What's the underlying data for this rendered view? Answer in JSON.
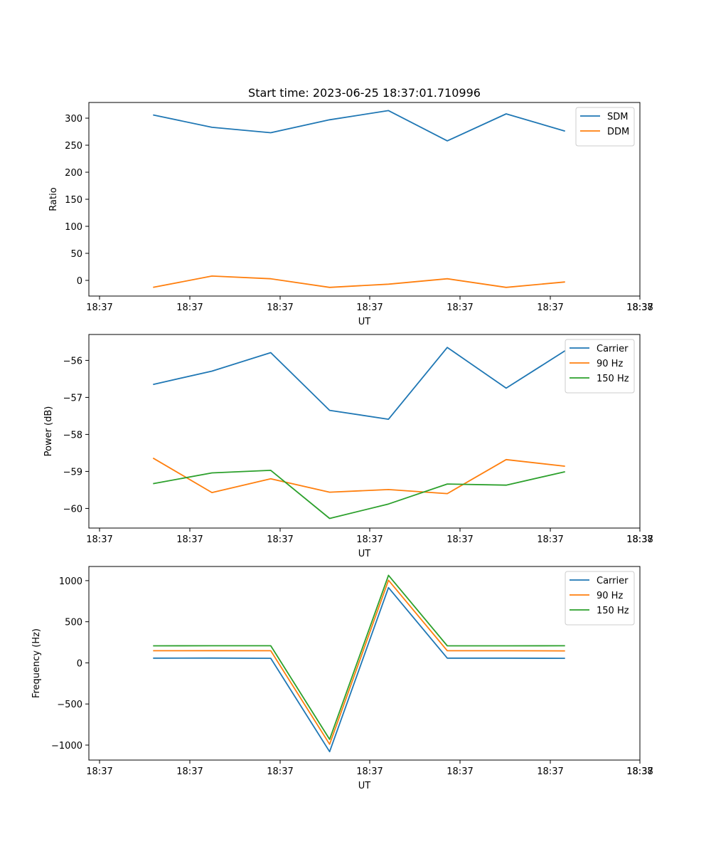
{
  "figure": {
    "title": "Start time: 2023-06-25 18:37:01.710996"
  },
  "colors": {
    "series1": "#1f77b4",
    "series2": "#ff7f0e",
    "series3": "#2ca02c",
    "axes": "#000000",
    "background": "#ffffff"
  },
  "chart_data": [
    {
      "type": "line",
      "title": "Start time: 2023-06-25 18:37:01.710996",
      "xlabel": "UT",
      "ylabel": "Ratio",
      "x_tick_labels": [
        "18:37",
        "18:37",
        "18:37",
        "18:37",
        "18:37",
        "18:37",
        "18:37",
        "18:38"
      ],
      "x": [
        0.5,
        1.05,
        1.6,
        2.15,
        2.7,
        3.25,
        3.8,
        4.35
      ],
      "xlim": [
        -0.1,
        5.05
      ],
      "ylim": [
        -29,
        329
      ],
      "yticks": [
        0,
        50,
        100,
        150,
        200,
        250,
        300
      ],
      "grid": false,
      "legend_position": "top-right",
      "series": [
        {
          "name": "SDM",
          "color": "#1f77b4",
          "values": [
            306,
            283,
            273,
            297,
            314,
            258,
            308,
            276
          ]
        },
        {
          "name": "DDM",
          "color": "#ff7f0e",
          "values": [
            -13,
            8,
            3,
            -13,
            -7,
            3,
            -13,
            -3
          ]
        }
      ]
    },
    {
      "type": "line",
      "title": "",
      "xlabel": "UT",
      "ylabel": "Power (dB)",
      "x_tick_labels": [
        "18:37",
        "18:37",
        "18:37",
        "18:37",
        "18:37",
        "18:37",
        "18:37",
        "18:38"
      ],
      "x": [
        0.5,
        1.05,
        1.6,
        2.15,
        2.7,
        3.25,
        3.8,
        4.35
      ],
      "xlim": [
        -0.1,
        5.05
      ],
      "ylim": [
        -60.53,
        -55.3
      ],
      "yticks": [
        -60,
        -59,
        -58,
        -57,
        -56
      ],
      "grid": false,
      "legend_position": "top-right",
      "series": [
        {
          "name": "Carrier",
          "color": "#1f77b4",
          "values": [
            -56.65,
            -56.29,
            -55.79,
            -57.35,
            -57.59,
            -55.65,
            -56.75,
            -55.74
          ]
        },
        {
          "name": "90 Hz",
          "color": "#ff7f0e",
          "values": [
            -58.64,
            -59.57,
            -59.2,
            -59.56,
            -59.49,
            -59.6,
            -58.68,
            -58.86
          ]
        },
        {
          "name": "150 Hz",
          "color": "#2ca02c",
          "values": [
            -59.33,
            -59.04,
            -58.97,
            -60.27,
            -59.88,
            -59.34,
            -59.37,
            -59.01
          ]
        }
      ]
    },
    {
      "type": "line",
      "title": "",
      "xlabel": "UT",
      "ylabel": "Frequency (Hz)",
      "x_tick_labels": [
        "18:37",
        "18:37",
        "18:37",
        "18:37",
        "18:37",
        "18:37",
        "18:37",
        "18:38"
      ],
      "x": [
        0.5,
        1.05,
        1.6,
        2.15,
        2.7,
        3.25,
        3.8,
        4.35
      ],
      "xlim": [
        -0.1,
        5.05
      ],
      "ylim": [
        -1182,
        1172
      ],
      "yticks": [
        -1000,
        -500,
        0,
        500,
        1000
      ],
      "grid": false,
      "legend_position": "top-right",
      "series": [
        {
          "name": "Carrier",
          "color": "#1f77b4",
          "values": [
            57,
            58,
            56,
            -1080,
            915,
            57,
            57,
            56
          ]
        },
        {
          "name": "90 Hz",
          "color": "#ff7f0e",
          "values": [
            147,
            148,
            147,
            -990,
            1005,
            147,
            147,
            146
          ]
        },
        {
          "name": "150 Hz",
          "color": "#2ca02c",
          "values": [
            207,
            208,
            208,
            -930,
            1065,
            207,
            207,
            208
          ]
        }
      ]
    }
  ]
}
